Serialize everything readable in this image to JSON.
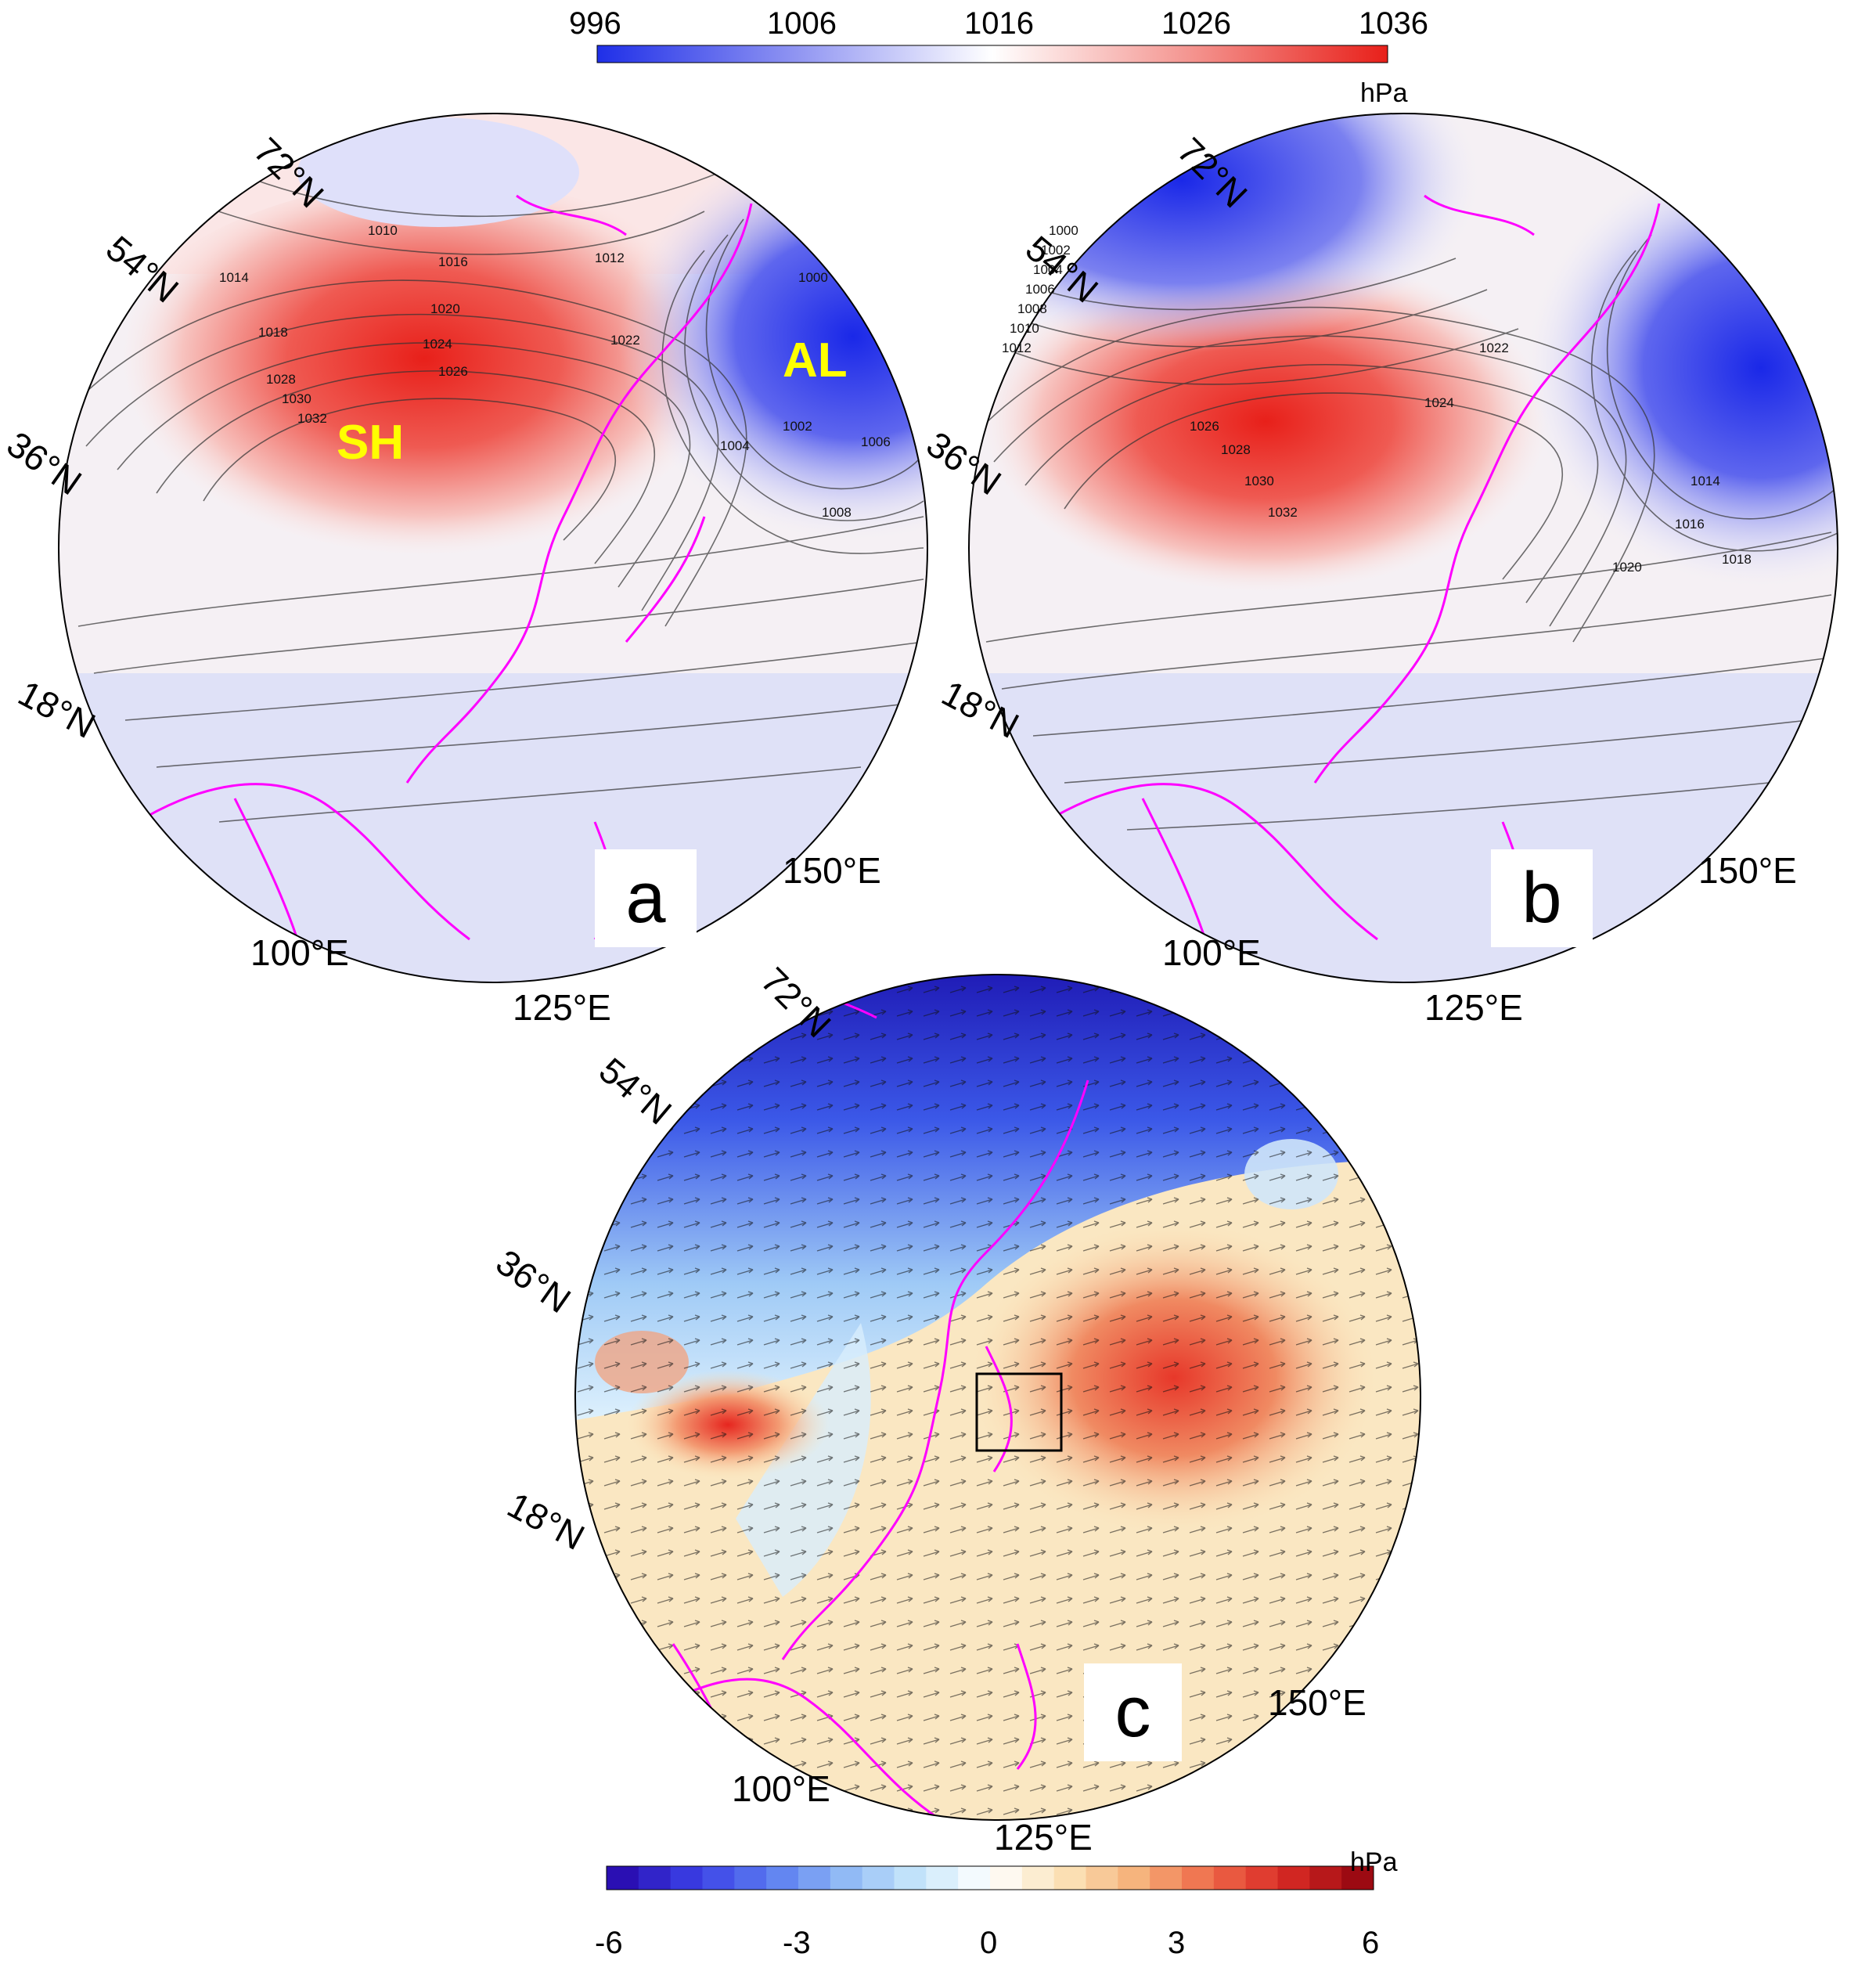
{
  "top_colorbar": {
    "ticks": [
      "996",
      "1006",
      "1016",
      "1026",
      "1036"
    ],
    "unit": "hPa",
    "colors": {
      "low": "#1f2fe8",
      "mid": "#ffffff",
      "high": "#e8201a"
    }
  },
  "bottom_colorbar": {
    "ticks": [
      "-6",
      "-3",
      "0",
      "3",
      "6"
    ],
    "unit": "hPa",
    "colors": [
      "#2a0fb3",
      "#3a3fe6",
      "#5a7bf0",
      "#8fb8f5",
      "#c6e6fb",
      "#ffffff",
      "#fbe3b8",
      "#f6b27a",
      "#ef6a4a",
      "#d92a24",
      "#9c0a12"
    ]
  },
  "panels": {
    "a": {
      "label": "a",
      "lat_labels": [
        "72°N",
        "54°N",
        "36°N",
        "18°N"
      ],
      "lon_labels": [
        "100°E",
        "125°E",
        "150°E"
      ],
      "centers": [
        "SH",
        "AL"
      ],
      "contour_labels": [
        "1010",
        "1012",
        "1014",
        "1016",
        "1018",
        "1020",
        "1022",
        "1024",
        "1026",
        "1028",
        "1030",
        "1032",
        "1000",
        "1002",
        "1004",
        "1006",
        "1008"
      ]
    },
    "b": {
      "label": "b",
      "lat_labels": [
        "72°N",
        "54°N",
        "36°N",
        "18°N"
      ],
      "lon_labels": [
        "100°E",
        "125°E",
        "150°E"
      ],
      "contour_labels": [
        "1000",
        "1002",
        "1004",
        "1006",
        "1008",
        "1010",
        "1012",
        "1014",
        "1016",
        "1018",
        "1020",
        "1022",
        "1024",
        "1026",
        "1028",
        "1030",
        "1032"
      ]
    },
    "c": {
      "label": "c",
      "lat_labels": [
        "72°N",
        "54°N",
        "36°N",
        "18°N"
      ],
      "lon_labels": [
        "100°E",
        "125°E",
        "150°E"
      ]
    }
  },
  "icons": [
    "coastline-map",
    "wind-vector-arrows",
    "study-area-box"
  ]
}
